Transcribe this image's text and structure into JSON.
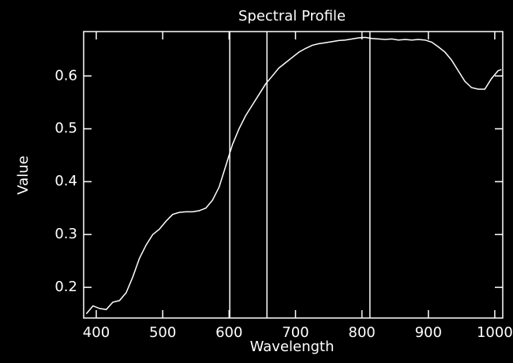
{
  "chart_data": {
    "type": "line",
    "title": "Spectral Profile",
    "xlabel": "Wavelength",
    "ylabel": "Value",
    "x": [
      385,
      395,
      405,
      415,
      425,
      435,
      445,
      455,
      465,
      475,
      485,
      495,
      505,
      515,
      525,
      535,
      545,
      555,
      565,
      575,
      585,
      595,
      605,
      615,
      625,
      635,
      645,
      655,
      665,
      675,
      685,
      695,
      705,
      715,
      725,
      735,
      745,
      755,
      765,
      775,
      785,
      795,
      805,
      815,
      825,
      835,
      845,
      855,
      865,
      875,
      885,
      895,
      905,
      915,
      925,
      935,
      945,
      955,
      965,
      975,
      985,
      995,
      1005,
      1010
    ],
    "series": [
      {
        "color": "#ffffff",
        "values": [
          0.15,
          0.165,
          0.16,
          0.158,
          0.172,
          0.175,
          0.19,
          0.22,
          0.255,
          0.28,
          0.3,
          0.31,
          0.325,
          0.338,
          0.342,
          0.343,
          0.343,
          0.345,
          0.35,
          0.365,
          0.39,
          0.43,
          0.47,
          0.5,
          0.525,
          0.545,
          0.565,
          0.585,
          0.6,
          0.615,
          0.625,
          0.635,
          0.645,
          0.652,
          0.658,
          0.661,
          0.663,
          0.665,
          0.667,
          0.668,
          0.67,
          0.672,
          0.673,
          0.671,
          0.67,
          0.669,
          0.67,
          0.668,
          0.669,
          0.668,
          0.669,
          0.668,
          0.664,
          0.655,
          0.645,
          0.63,
          0.61,
          0.59,
          0.578,
          0.575,
          0.575,
          0.595,
          0.61,
          0.612
        ]
      }
    ],
    "vlines": [
      601,
      657,
      812
    ],
    "xlim": [
      381,
      1012
    ],
    "xticks": [
      400,
      500,
      600,
      700,
      800,
      900,
      1000
    ],
    "ylim": [
      0.142,
      0.684
    ],
    "yticks": [
      0.2,
      0.3,
      0.4,
      0.5,
      0.6
    ]
  }
}
